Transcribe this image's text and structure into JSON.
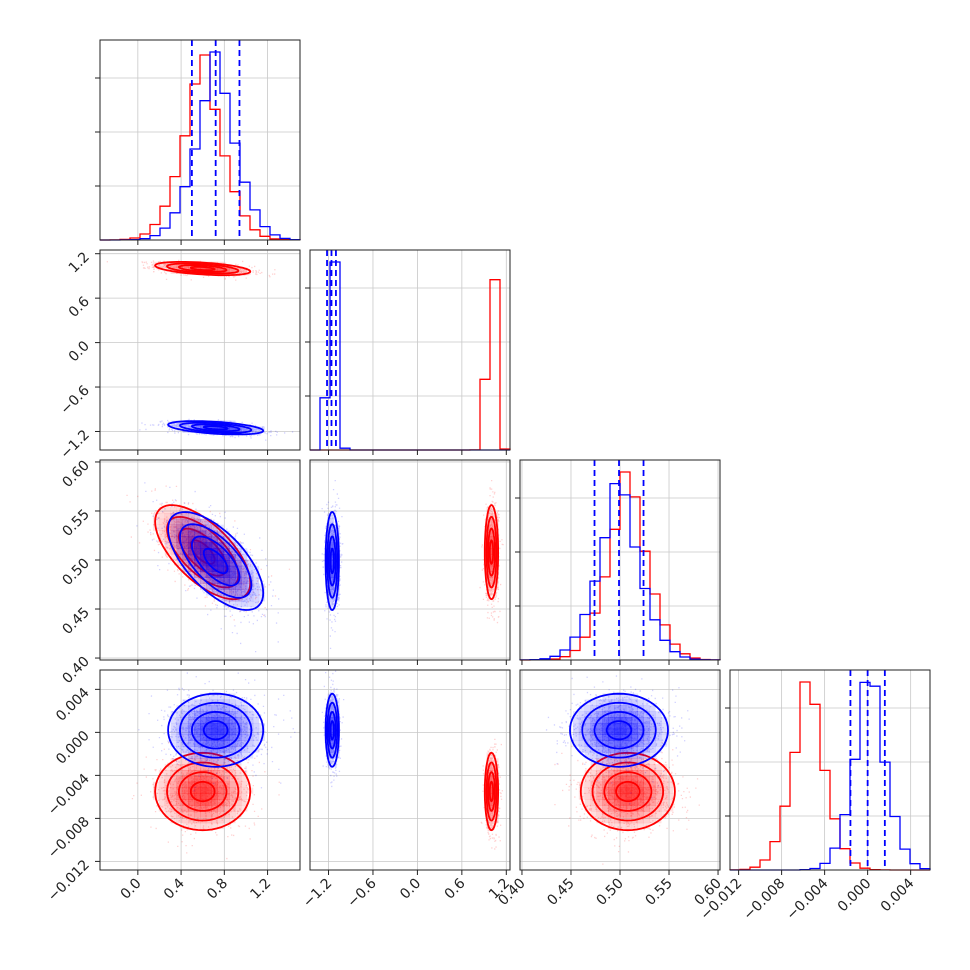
{
  "chart_data": {
    "type": "corner",
    "title": "",
    "parameters": [
      {
        "ticks": [
          0.0,
          0.4,
          0.8,
          1.2
        ],
        "tick_labels": [
          "0.0",
          "0.4",
          "0.8",
          "1.2"
        ],
        "range": [
          -0.35,
          1.5
        ]
      },
      {
        "ticks": [
          -1.2,
          -0.6,
          0.0,
          0.6,
          1.2
        ],
        "tick_labels": [
          "−1.2",
          "−0.6",
          "0.0",
          "0.6",
          "1.2"
        ],
        "range": [
          -1.45,
          1.25
        ]
      },
      {
        "ticks": [
          0.4,
          0.45,
          0.5,
          0.55,
          0.6
        ],
        "tick_labels": [
          "0.40",
          "0.45",
          "0.50",
          "0.55",
          "0.60"
        ],
        "range": [
          0.398,
          0.602
        ]
      },
      {
        "ticks": [
          -0.012,
          -0.008,
          -0.004,
          0.0,
          0.004
        ],
        "tick_labels": [
          "−0.012",
          "−0.008",
          "−0.004",
          "0.000",
          "0.004"
        ],
        "range": [
          -0.0128,
          0.0058
        ]
      }
    ],
    "series": [
      {
        "color": "#ff0000",
        "mean": [
          0.6,
          1.0,
          0.508,
          -0.0055
        ],
        "sigma": [
          0.22,
          0.045,
          0.024,
          0.0018
        ]
      },
      {
        "color": "#0000ff",
        "mean": [
          0.72,
          -1.15,
          0.499,
          0.0002
        ],
        "sigma": [
          0.22,
          0.045,
          0.025,
          0.0017
        ],
        "quantiles": [
          [
            0.5,
            0.72,
            0.94
          ],
          [
            -1.22,
            -1.16,
            -1.1
          ],
          [
            0.474,
            0.499,
            0.524
          ],
          [
            -0.0016,
            0.0,
            0.0016
          ]
        ]
      }
    ],
    "correlations": [
      [
        0,
        1,
        -0.45
      ],
      [
        0,
        2,
        -0.65
      ]
    ],
    "grid": true,
    "contour_levels": [
      0.5,
      1.0,
      1.5,
      2.0
    ]
  }
}
